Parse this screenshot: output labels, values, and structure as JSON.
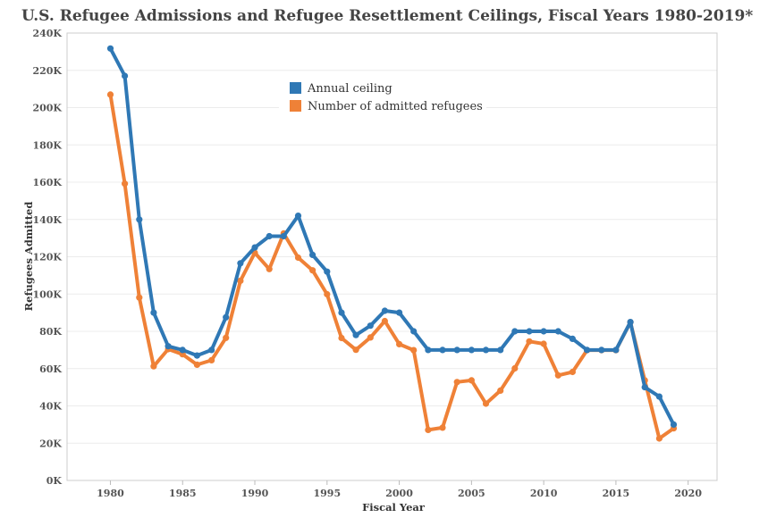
{
  "colors": {
    "ceiling": "#2f78b5",
    "admitted": "#ef8137",
    "grid": "#ececec",
    "axis": "#cccccc"
  },
  "chart_data": {
    "type": "line",
    "title": "U.S. Refugee Admissions and Refugee Resettlement Ceilings, Fiscal Years 1980-2019*",
    "xlabel": "Fiscal Year",
    "ylabel": "Refugees Admitted",
    "xlim": [
      1977,
      2022
    ],
    "ylim": [
      0,
      240000
    ],
    "x_ticks": [
      1980,
      1985,
      1990,
      1995,
      2000,
      2005,
      2010,
      2015,
      2020
    ],
    "x_tick_labels": [
      "1980",
      "1985",
      "1990",
      "1995",
      "2000",
      "2005",
      "2010",
      "2015",
      "2020"
    ],
    "y_ticks": [
      0,
      20000,
      40000,
      60000,
      80000,
      100000,
      120000,
      140000,
      160000,
      180000,
      200000,
      220000,
      240000
    ],
    "y_tick_labels": [
      "0K",
      "20K",
      "40K",
      "60K",
      "80K",
      "100K",
      "120K",
      "140K",
      "160K",
      "180K",
      "200K",
      "220K",
      "240K"
    ],
    "legend_position": "top-center",
    "x": [
      1980,
      1981,
      1982,
      1983,
      1984,
      1985,
      1986,
      1987,
      1988,
      1989,
      1990,
      1991,
      1992,
      1993,
      1994,
      1995,
      1996,
      1997,
      1998,
      1999,
      2000,
      2001,
      2002,
      2003,
      2004,
      2005,
      2006,
      2007,
      2008,
      2009,
      2010,
      2011,
      2012,
      2013,
      2014,
      2015,
      2016,
      2017,
      2018,
      2019
    ],
    "series": [
      {
        "name": "Annual ceiling",
        "color_key": "ceiling",
        "values": [
          231700,
          217000,
          140000,
          90000,
          72000,
          70000,
          67000,
          70000,
          87500,
          116500,
          125000,
          131000,
          131000,
          142000,
          121000,
          112000,
          90000,
          78000,
          83000,
          91000,
          90000,
          80000,
          70000,
          70000,
          70000,
          70000,
          70000,
          70000,
          80000,
          80000,
          80000,
          80000,
          76000,
          70000,
          70000,
          70000,
          85000,
          50000,
          45000,
          30000
        ]
      },
      {
        "name": "Number of admitted refugees",
        "color_key": "admitted",
        "values": [
          207000,
          159200,
          98100,
          61200,
          70400,
          67700,
          62100,
          64500,
          76500,
          107100,
          122100,
          113400,
          132500,
          119500,
          112700,
          99900,
          76400,
          70100,
          76700,
          85500,
          73100,
          69900,
          27100,
          28300,
          52800,
          53700,
          41200,
          48200,
          60100,
          74600,
          73300,
          56400,
          58200,
          69900,
          69900,
          69900,
          84900,
          53700,
          22500,
          28000
        ]
      }
    ]
  }
}
